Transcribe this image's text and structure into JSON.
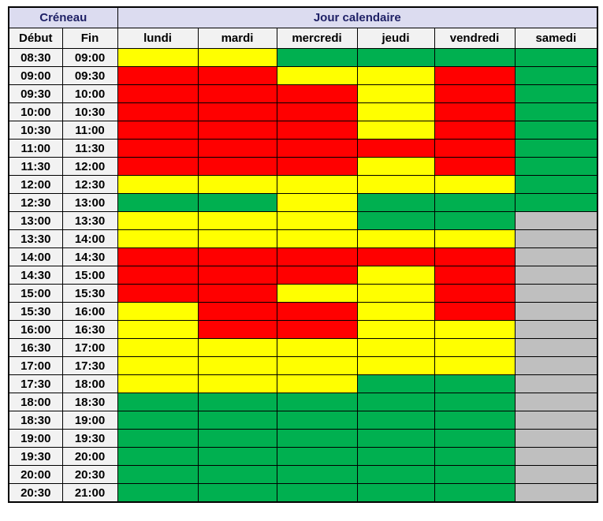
{
  "header": {
    "creneau": "Créneau",
    "jour": "Jour calendaire",
    "debut": "Début",
    "fin": "Fin",
    "days": [
      "lundi",
      "mardi",
      "mercredi",
      "jeudi",
      "vendredi",
      "samedi"
    ]
  },
  "styles": {
    "top_header_bg": "#DCDCF0",
    "top_header_text": "#1F2166",
    "sub_header_bg": "#F2F2F2",
    "time_cell_bg": "#F2F2F2",
    "grid_border": "#000000"
  },
  "chart_data": {
    "type": "heatmap",
    "title": "Jour calendaire / Créneau availability grid",
    "x": [
      "lundi",
      "mardi",
      "mercredi",
      "jeudi",
      "vendredi",
      "samedi"
    ],
    "y_slots": [
      {
        "start": "08:30",
        "end": "09:00"
      },
      {
        "start": "09:00",
        "end": "09:30"
      },
      {
        "start": "09:30",
        "end": "10:00"
      },
      {
        "start": "10:00",
        "end": "10:30"
      },
      {
        "start": "10:30",
        "end": "11:00"
      },
      {
        "start": "11:00",
        "end": "11:30"
      },
      {
        "start": "11:30",
        "end": "12:00"
      },
      {
        "start": "12:00",
        "end": "12:30"
      },
      {
        "start": "12:30",
        "end": "13:00"
      },
      {
        "start": "13:00",
        "end": "13:30"
      },
      {
        "start": "13:30",
        "end": "14:00"
      },
      {
        "start": "14:00",
        "end": "14:30"
      },
      {
        "start": "14:30",
        "end": "15:00"
      },
      {
        "start": "15:00",
        "end": "15:30"
      },
      {
        "start": "15:30",
        "end": "16:00"
      },
      {
        "start": "16:00",
        "end": "16:30"
      },
      {
        "start": "16:30",
        "end": "17:00"
      },
      {
        "start": "17:00",
        "end": "17:30"
      },
      {
        "start": "17:30",
        "end": "18:00"
      },
      {
        "start": "18:00",
        "end": "18:30"
      },
      {
        "start": "18:30",
        "end": "19:00"
      },
      {
        "start": "19:00",
        "end": "19:30"
      },
      {
        "start": "19:30",
        "end": "20:00"
      },
      {
        "start": "20:00",
        "end": "20:30"
      },
      {
        "start": "20:30",
        "end": "21:00"
      }
    ],
    "values": [
      [
        "Y",
        "Y",
        "G",
        "G",
        "G",
        "G"
      ],
      [
        "R",
        "R",
        "Y",
        "Y",
        "R",
        "G"
      ],
      [
        "R",
        "R",
        "R",
        "Y",
        "R",
        "G"
      ],
      [
        "R",
        "R",
        "R",
        "Y",
        "R",
        "G"
      ],
      [
        "R",
        "R",
        "R",
        "Y",
        "R",
        "G"
      ],
      [
        "R",
        "R",
        "R",
        "R",
        "R",
        "G"
      ],
      [
        "R",
        "R",
        "R",
        "Y",
        "R",
        "G"
      ],
      [
        "Y",
        "Y",
        "Y",
        "Y",
        "Y",
        "G"
      ],
      [
        "G",
        "G",
        "Y",
        "G",
        "G",
        "G"
      ],
      [
        "Y",
        "Y",
        "Y",
        "G",
        "G",
        "X"
      ],
      [
        "Y",
        "Y",
        "Y",
        "Y",
        "Y",
        "X"
      ],
      [
        "R",
        "R",
        "R",
        "R",
        "R",
        "X"
      ],
      [
        "R",
        "R",
        "R",
        "Y",
        "R",
        "X"
      ],
      [
        "R",
        "R",
        "Y",
        "Y",
        "R",
        "X"
      ],
      [
        "Y",
        "R",
        "R",
        "Y",
        "R",
        "X"
      ],
      [
        "Y",
        "R",
        "R",
        "Y",
        "Y",
        "X"
      ],
      [
        "Y",
        "Y",
        "Y",
        "Y",
        "Y",
        "X"
      ],
      [
        "Y",
        "Y",
        "Y",
        "Y",
        "Y",
        "X"
      ],
      [
        "Y",
        "Y",
        "Y",
        "G",
        "G",
        "X"
      ],
      [
        "G",
        "G",
        "G",
        "G",
        "G",
        "X"
      ],
      [
        "G",
        "G",
        "G",
        "G",
        "G",
        "X"
      ],
      [
        "G",
        "G",
        "G",
        "G",
        "G",
        "X"
      ],
      [
        "G",
        "G",
        "G",
        "G",
        "G",
        "X"
      ],
      [
        "G",
        "G",
        "G",
        "G",
        "G",
        "X"
      ],
      [
        "G",
        "G",
        "G",
        "G",
        "G",
        "X"
      ]
    ],
    "color_map": {
      "R": "#FF0000",
      "Y": "#FFFF00",
      "G": "#00B050",
      "X": "#BFBFBF"
    }
  }
}
